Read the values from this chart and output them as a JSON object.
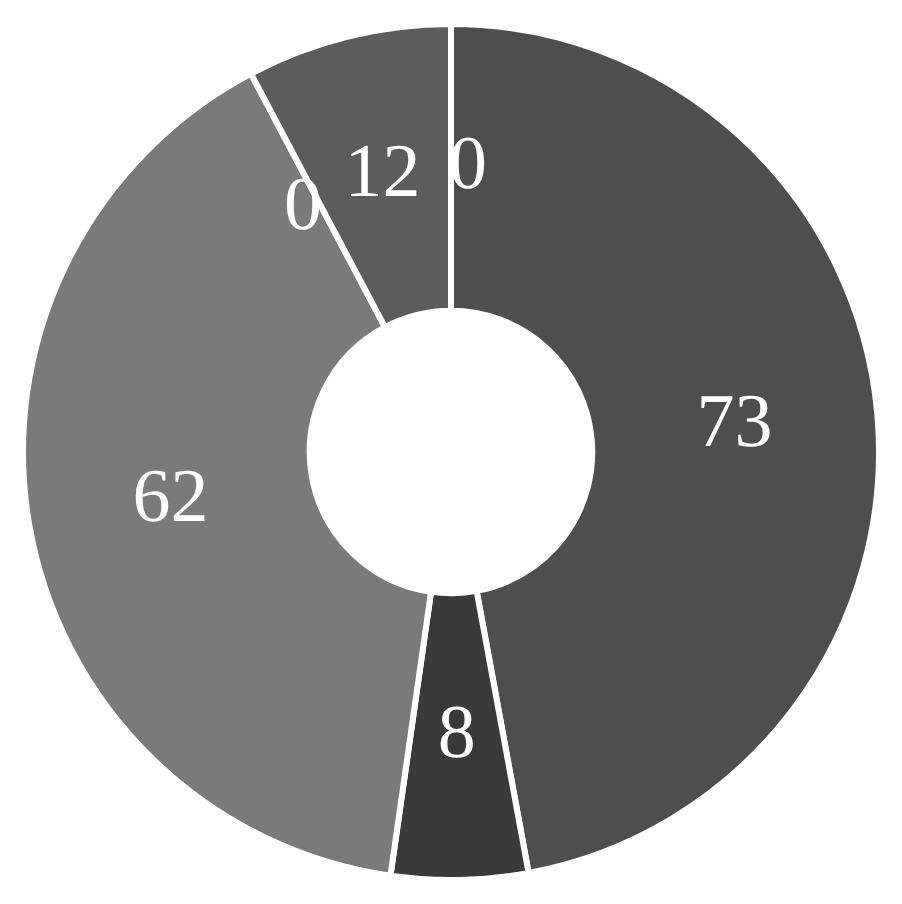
{
  "chart_data": {
    "type": "donut",
    "categories": [
      null,
      null,
      null,
      null,
      null,
      null
    ],
    "values": [
      73,
      8,
      62,
      0,
      12,
      0
    ],
    "colors": [
      "#4e4e4e",
      "#3a3a3a",
      "#7a7a7a",
      "#8a8a8a",
      "#5c5c5c",
      "#8a8a8a"
    ],
    "value_labels": [
      "73",
      "8",
      "62",
      "0",
      "12",
      "0"
    ],
    "legend": false
  }
}
